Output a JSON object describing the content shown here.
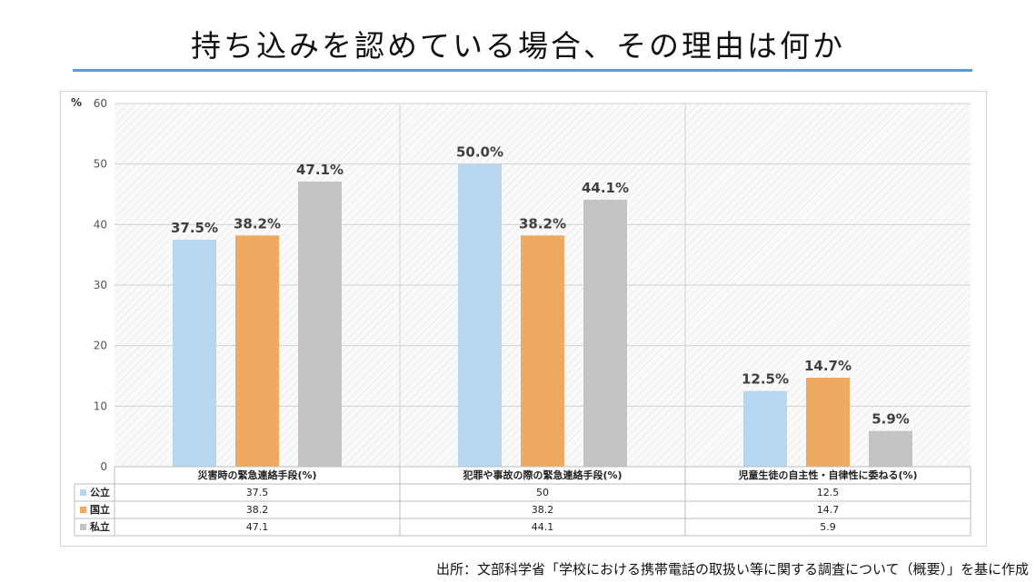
{
  "title": "持ち込みを認めている場合、その理由は何か",
  "source": "出所：文部科学省「学校における携帯電話の取扱い等に関する調査について（概要）」を基に作成",
  "chart_data": {
    "type": "bar",
    "y_unit": "%",
    "ylim": [
      0,
      60
    ],
    "yticks": [
      "60",
      "50",
      "40",
      "30",
      "20",
      "10",
      "0"
    ],
    "categories": [
      "災害時の緊急連絡手段(%)",
      "犯罪や事故の際の緊急連絡手段(%)",
      "児童生徒の自主性・自律性に委ねる(%)"
    ],
    "series": [
      {
        "name": "公立",
        "values": [
          37.5,
          50.0,
          12.5
        ],
        "labels": [
          "37.5%",
          "50.0%",
          "12.5%"
        ],
        "table": [
          "37.5",
          "50",
          "12.5"
        ],
        "color": "#b7d6f0"
      },
      {
        "name": "国立",
        "values": [
          38.2,
          38.2,
          14.7
        ],
        "labels": [
          "38.2%",
          "38.2%",
          "14.7%"
        ],
        "table": [
          "38.2",
          "38.2",
          "14.7"
        ],
        "color": "#efaa62"
      },
      {
        "name": "私立",
        "values": [
          47.1,
          44.1,
          5.9
        ],
        "labels": [
          "47.1%",
          "44.1%",
          "5.9%"
        ],
        "table": [
          "47.1",
          "44.1",
          "5.9"
        ],
        "color": "#c4c4c4"
      }
    ],
    "grid": true,
    "legend": "data-table"
  }
}
